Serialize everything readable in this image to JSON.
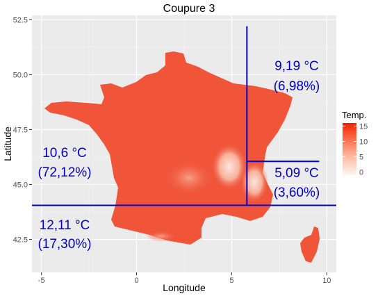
{
  "title": "Coupure 3",
  "axes": {
    "xlabel": "Longitude",
    "ylabel": "Latitude",
    "xlim": [
      -5.5,
      10.5
    ],
    "ylim": [
      41.0,
      52.7
    ],
    "xticks": [
      -5,
      0,
      5,
      10
    ],
    "yticks": [
      42.5,
      45.0,
      47.5,
      50.0,
      52.5
    ],
    "xtick_labels": [
      "-5",
      "0",
      "5",
      "10"
    ],
    "ytick_labels": [
      "42.5",
      "45.0",
      "47.5",
      "50.0",
      "52.5"
    ]
  },
  "legend": {
    "title": "Temp.",
    "ticks": [
      0,
      5,
      10,
      15
    ],
    "tick_labels": [
      "0",
      "5",
      "10",
      "15"
    ],
    "range": [
      -1,
      16
    ],
    "colors": {
      "low": "#fff5f0",
      "high": "#ee2200"
    }
  },
  "cuts": {
    "vertical_x": 5.8,
    "horizontal_y": 44.05,
    "sub_y": 46.05,
    "sub_x_end": 9.6,
    "line_top": 52.2,
    "color": "#0000cc"
  },
  "annotations": [
    {
      "id": "ne",
      "temp": "9,19 °C",
      "pct": "(6,98%)"
    },
    {
      "id": "w",
      "temp": "10,6 °C",
      "pct": "(72,12%)"
    },
    {
      "id": "e",
      "temp": "5,09 °C",
      "pct": "(3,60%)"
    },
    {
      "id": "sw",
      "temp": "12,11 °C",
      "pct": "(17,30%)"
    }
  ],
  "map": {
    "fill": "#f0553a",
    "panel_bg": "#ebebeb",
    "alps_color": "#fbd9cc"
  }
}
